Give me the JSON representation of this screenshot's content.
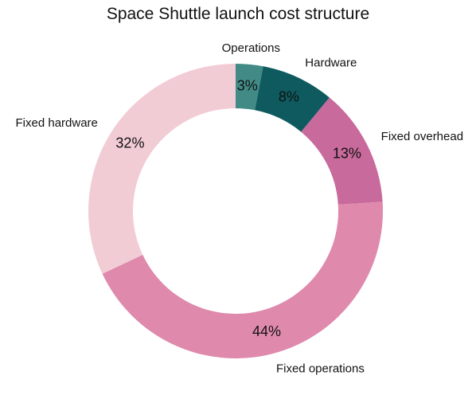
{
  "chart_data": {
    "type": "pie",
    "title": "Space Shuttle launch cost structure",
    "categories": [
      "Operations",
      "Hardware",
      "Fixed overhead",
      "Fixed operations",
      "Fixed hardware"
    ],
    "values": [
      3,
      8,
      13,
      44,
      32
    ],
    "percent_labels": [
      "3%",
      "8%",
      "13%",
      "44%",
      "32%"
    ],
    "colors": [
      "#428a85",
      "#0e5a5f",
      "#c86a9c",
      "#df89ac",
      "#f2ccd4"
    ],
    "donut": true,
    "start": "top",
    "direction": "clockwise"
  }
}
